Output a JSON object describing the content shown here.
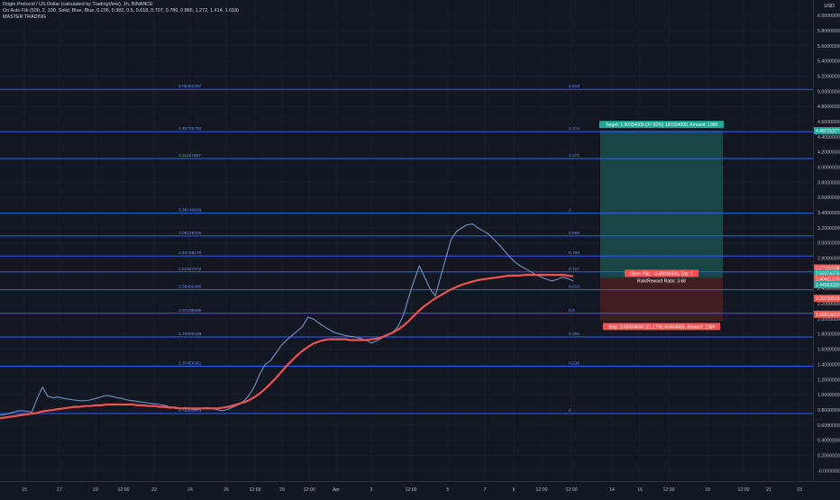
{
  "header": {
    "title": "Origin Protocol / US Dollar (calculated by TradingView), 1h, BINANCE",
    "indicator": "Ori Auto Fib (500, 2, 100, Solid, Blue, Blue, 0.236, 0.382, 0.5, 0.618, 0.707, 0.786, 0.886, 1.272, 1.414, 1.618)",
    "indicator2": "MASTER TRADING",
    "currency": "USD"
  },
  "colors": {
    "background": "#131722",
    "fib_line": "#2962ff",
    "up": "#26a69a",
    "down": "#ef5350",
    "ma_long": "#ef5350",
    "target_zone": "#1e6b63",
    "stop_zone": "#4a1e22"
  },
  "chart_data": {
    "type": "line",
    "title": "Origin Protocol / US Dollar (calculated by TradingView), 1h, BINANCE",
    "xlabel": "",
    "ylabel": "USD",
    "ylim": [
      -0.05,
      6.1
    ],
    "y_ticks": [
      "6.00000000",
      "5.80000000",
      "5.60000000",
      "5.40000000",
      "5.20000000",
      "5.00000000",
      "4.80000000",
      "4.60000000",
      "4.40000000",
      "4.20000000",
      "4.00000000",
      "3.80000000",
      "3.60000000",
      "3.40000000",
      "3.20000000",
      "3.00000000",
      "2.80000000",
      "2.60000000",
      "2.40000000",
      "2.20000000",
      "2.00000000",
      "1.80000000",
      "1.60000000",
      "1.40000000",
      "1.20000000",
      "1.00000000",
      "0.80000000",
      "0.60000000",
      "0.40000000",
      "0.20000000",
      "-0.00000000"
    ],
    "x_ticks": [
      "15",
      "17",
      "19",
      "12:00",
      "22",
      "24",
      "26",
      "12:00",
      "29",
      "12:00",
      "Apr",
      "3",
      "12:00",
      "5",
      "7",
      "9",
      "12:00",
      "12:00",
      "14",
      "16",
      "12:00",
      "19",
      "12:00",
      "21",
      "23",
      "12:00",
      "26"
    ],
    "fib_levels": [
      {
        "value": 5.02461257,
        "price_label": "5.02461257",
        "ratio_label": "1.618"
      },
      {
        "value": 4.46725753,
        "price_label": "4.46725753",
        "ratio_label": "1.414"
      },
      {
        "value": 4.11227887,
        "price_label": "4.11227887",
        "ratio_label": "1.272"
      },
      {
        "value": 3.39149649,
        "price_label": "3.39149649",
        "ratio_label": "1"
      },
      {
        "value": 3.09226026,
        "price_label": "3.09226026",
        "ratio_label": "0.886"
      },
      {
        "value": 2.82798176,
        "price_label": "2.82798176",
        "ratio_label": "0.786"
      },
      {
        "value": 2.61927072,
        "price_label": "2.61927072",
        "ratio_label": "0.707"
      },
      {
        "value": 2.38402485,
        "price_label": "2.38402485",
        "ratio_label": "0.618"
      },
      {
        "value": 2.07235099,
        "price_label": "2.07235099",
        "ratio_label": "0.5"
      },
      {
        "value": 1.76080108,
        "price_label": "1.76080108",
        "ratio_label": "0.382"
      },
      {
        "value": 1.37456361,
        "price_label": "1.37456361",
        "ratio_label": "0.236"
      },
      {
        "value": 0.7525,
        "price_label": "0.75251274",
        "ratio_label": "0"
      }
    ],
    "series": [
      {
        "name": "",
        "values": [
          0.73,
          0.74,
          0.76,
          0.78,
          0.79,
          0.78,
          0.77,
          0.95,
          1.1,
          0.98,
          0.96,
          0.97,
          0.95,
          0.94,
          0.93,
          0.92,
          0.92,
          0.93,
          0.95,
          0.97,
          0.99,
          0.98,
          0.96,
          0.95,
          0.93,
          0.92,
          0.91,
          0.9,
          0.89,
          0.88,
          0.87,
          0.86,
          0.84,
          0.82,
          0.82,
          0.83,
          0.81,
          0.8,
          0.82,
          0.83,
          0.82,
          0.8,
          0.79,
          0.81,
          0.84,
          0.87,
          0.92,
          1.0,
          1.12,
          1.28,
          1.4,
          1.45,
          1.55,
          1.65,
          1.72,
          1.78,
          1.84,
          1.9,
          2.02,
          2.0,
          1.95,
          1.9,
          1.86,
          1.82,
          1.8,
          1.78,
          1.77,
          1.76,
          1.74,
          1.72,
          1.68,
          1.71,
          1.75,
          1.78,
          1.82,
          1.9,
          2.05,
          2.28,
          2.5,
          2.7,
          2.55,
          2.4,
          2.3,
          2.55,
          2.8,
          3.05,
          3.15,
          3.2,
          3.24,
          3.25,
          3.2,
          3.16,
          3.12,
          3.05,
          2.98,
          2.9,
          2.82,
          2.75,
          2.7,
          2.66,
          2.62,
          2.58,
          2.55,
          2.52,
          2.5,
          2.52,
          2.55,
          2.53,
          2.5
        ]
      },
      {
        "name": "",
        "values": [
          0.69,
          0.7,
          0.71,
          0.72,
          0.73,
          0.74,
          0.75,
          0.76,
          0.78,
          0.79,
          0.8,
          0.81,
          0.82,
          0.83,
          0.84,
          0.84,
          0.85,
          0.85,
          0.86,
          0.86,
          0.87,
          0.87,
          0.87,
          0.87,
          0.87,
          0.87,
          0.86,
          0.86,
          0.85,
          0.85,
          0.84,
          0.84,
          0.83,
          0.83,
          0.82,
          0.82,
          0.82,
          0.82,
          0.82,
          0.82,
          0.82,
          0.82,
          0.83,
          0.84,
          0.86,
          0.88,
          0.9,
          0.93,
          0.97,
          1.02,
          1.08,
          1.15,
          1.22,
          1.3,
          1.38,
          1.45,
          1.52,
          1.58,
          1.63,
          1.67,
          1.7,
          1.72,
          1.73,
          1.73,
          1.73,
          1.73,
          1.72,
          1.72,
          1.72,
          1.72,
          1.73,
          1.74,
          1.76,
          1.79,
          1.82,
          1.86,
          1.91,
          1.97,
          2.04,
          2.11,
          2.17,
          2.22,
          2.27,
          2.31,
          2.35,
          2.39,
          2.42,
          2.45,
          2.47,
          2.49,
          2.51,
          2.52,
          2.53,
          2.54,
          2.55,
          2.56,
          2.57,
          2.57,
          2.57,
          2.58,
          2.58,
          2.58,
          2.58,
          2.58,
          2.58,
          2.58,
          2.58,
          2.57,
          2.56
        ]
      }
    ],
    "position": {
      "target_label": "Target: 1.90334000 (37.82%) 190334000, Amount: 1380",
      "open_label": "Open P&L: -0.09930355, Qty: 1",
      "rr_label": "Risk/Reward Ratio: 3.68",
      "stop_label": "Stop: 0.53404660 (21.17%) 53404660, Amount: 1050",
      "entry": 2.54,
      "target": 4.48,
      "stop": 1.97
    },
    "price_tags": [
      {
        "value": 4.48,
        "label": "4.48725377",
        "color": "#26a69a"
      },
      {
        "value": 2.67,
        "label": "2.67102108",
        "color": "#ef5350"
      },
      {
        "value": 2.6,
        "label": "2.59274376",
        "color": "#26a69a"
      },
      {
        "value": 2.53,
        "label": "2.49401076",
        "color": "#ef5350"
      },
      {
        "value": 2.45,
        "label": "2.44563320",
        "color": "#26a69a"
      },
      {
        "value": 2.27,
        "label": "2.20720619",
        "color": "#ef5350"
      },
      {
        "value": 2.06,
        "label": "1.96823810",
        "color": "#ef5350"
      }
    ]
  }
}
